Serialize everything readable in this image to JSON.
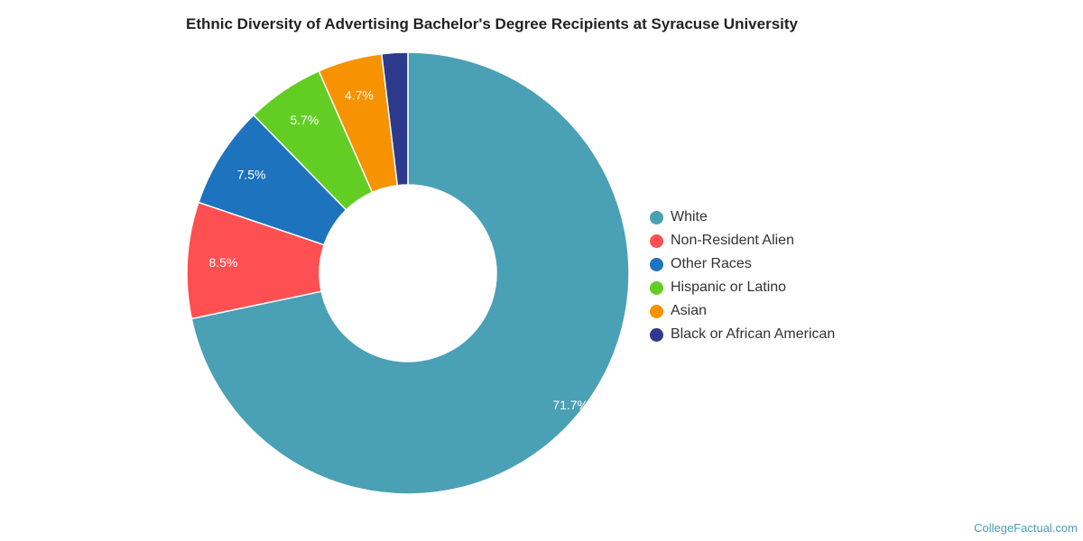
{
  "chart_data": {
    "type": "pie",
    "variant": "donut",
    "title": "Ethnic Diversity of Advertising Bachelor's Degree Recipients at Syracuse University",
    "categories": [
      "White",
      "Non-Resident Alien",
      "Other Races",
      "Hispanic or Latino",
      "Asian",
      "Black or African American"
    ],
    "values": [
      71.7,
      8.5,
      7.5,
      5.7,
      4.7,
      1.9
    ],
    "value_labels": [
      "71.7%",
      "8.5%",
      "7.5%",
      "5.7%",
      "4.7%",
      ""
    ],
    "colors": [
      "#4aa0b5",
      "#fe5052",
      "#1e73be",
      "#62ce24",
      "#f79200",
      "#2d3a8c"
    ],
    "legend_position": "right"
  },
  "watermark": "CollegeFactual.com"
}
